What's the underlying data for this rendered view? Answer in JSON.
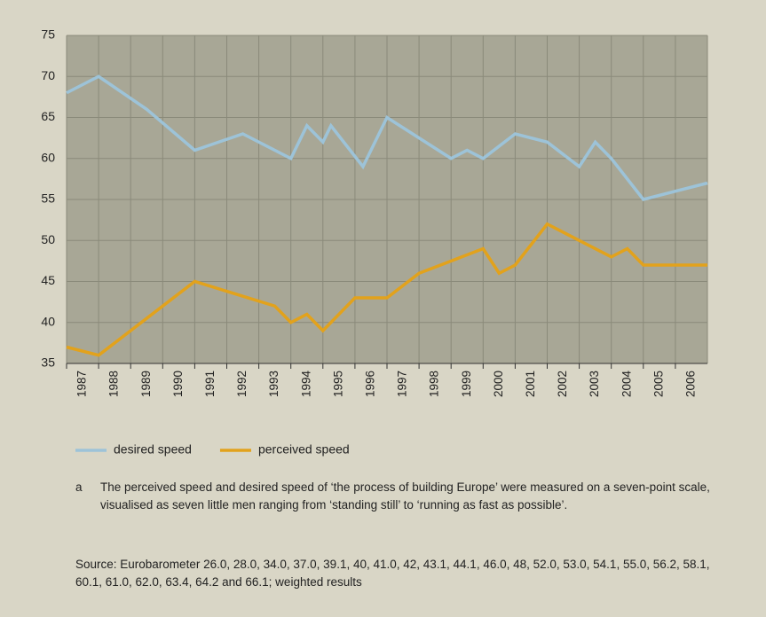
{
  "chart_data": {
    "type": "line",
    "xlim": [
      1986.5,
      2006.5
    ],
    "xticks": [
      1987,
      1988,
      1989,
      1990,
      1991,
      1992,
      1993,
      1994,
      1995,
      1996,
      1997,
      1998,
      1999,
      2000,
      2001,
      2002,
      2003,
      2004,
      2005,
      2006
    ],
    "ylim": [
      35,
      75
    ],
    "yticks": [
      35,
      40,
      45,
      50,
      55,
      60,
      65,
      70,
      75
    ],
    "grid": true,
    "series": [
      {
        "name": "desired speed",
        "color": "#9dc3d8",
        "x": [
          1986.5,
          1987.5,
          1989.0,
          1990.5,
          1992.0,
          1993.5,
          1994.0,
          1994.5,
          1994.75,
          1995.75,
          1996.5,
          1998.5,
          1999.0,
          1999.5,
          2000.5,
          2001.5,
          2002.5,
          2003.0,
          2003.5,
          2004.5,
          2006.5
        ],
        "values": [
          68,
          70,
          66,
          61,
          63,
          60,
          64,
          62,
          64,
          59,
          65,
          60,
          61,
          60,
          63,
          62,
          59,
          62,
          60,
          55,
          57
        ]
      },
      {
        "name": "perceived speed",
        "color": "#e2a21c",
        "x": [
          1986.5,
          1987.5,
          1990.5,
          1993.0,
          1993.5,
          1994.0,
          1994.5,
          1995.5,
          1996.5,
          1997.5,
          1999.5,
          2000.0,
          2000.5,
          2001.5,
          2003.5,
          2004.0,
          2004.5,
          2006.5
        ],
        "values": [
          37,
          36,
          45,
          42,
          40,
          41,
          39,
          43,
          43,
          46,
          49,
          46,
          47,
          52,
          48,
          49,
          47,
          47
        ]
      }
    ],
    "legend": "bottom-left",
    "footnote_marker": "a",
    "footnote": "The perceived speed and desired speed of ‘the process of building Europe’ were measured on a seven-point scale, visualised as seven little men ranging from ‘standing still’ to ‘running as fast as possible’.",
    "source": "Source: Eurobarometer 26.0, 28.0, 34.0, 37.0, 39.1, 40, 41.0, 42, 43.1, 44.1, 46.0, 48, 52.0, 53.0, 54.1, 55.0, 56.2, 58.1, 60.1, 61.0, 62.0, 63.4, 64.2 and 66.1; weighted results"
  }
}
